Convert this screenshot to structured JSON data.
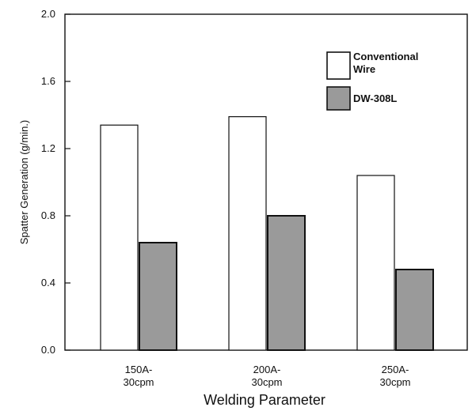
{
  "chart_data": {
    "type": "bar",
    "categories": [
      [
        "150A-",
        "30cpm"
      ],
      [
        "200A-",
        "30cpm"
      ],
      [
        "250A-",
        "30cpm"
      ]
    ],
    "series": [
      {
        "name": "Conventional Wire",
        "name_lines": [
          "Conventional",
          "Wire"
        ],
        "values": [
          1.34,
          1.39,
          1.04
        ],
        "color": "#ffffff"
      },
      {
        "name": "DW-308L",
        "name_lines": [
          "DW-308L"
        ],
        "values": [
          0.64,
          0.8,
          0.48
        ],
        "color": "#9a9a9a"
      }
    ],
    "xlabel": "Welding Parameter",
    "ylabel": "Spatter Generation  (g/min.)",
    "ylim": [
      0,
      2.0
    ],
    "yticks": [
      "0.0",
      "0.4",
      "0.8",
      "1.2",
      "1.6",
      "2.0"
    ],
    "legend_position": "top-right",
    "grid": false
  }
}
